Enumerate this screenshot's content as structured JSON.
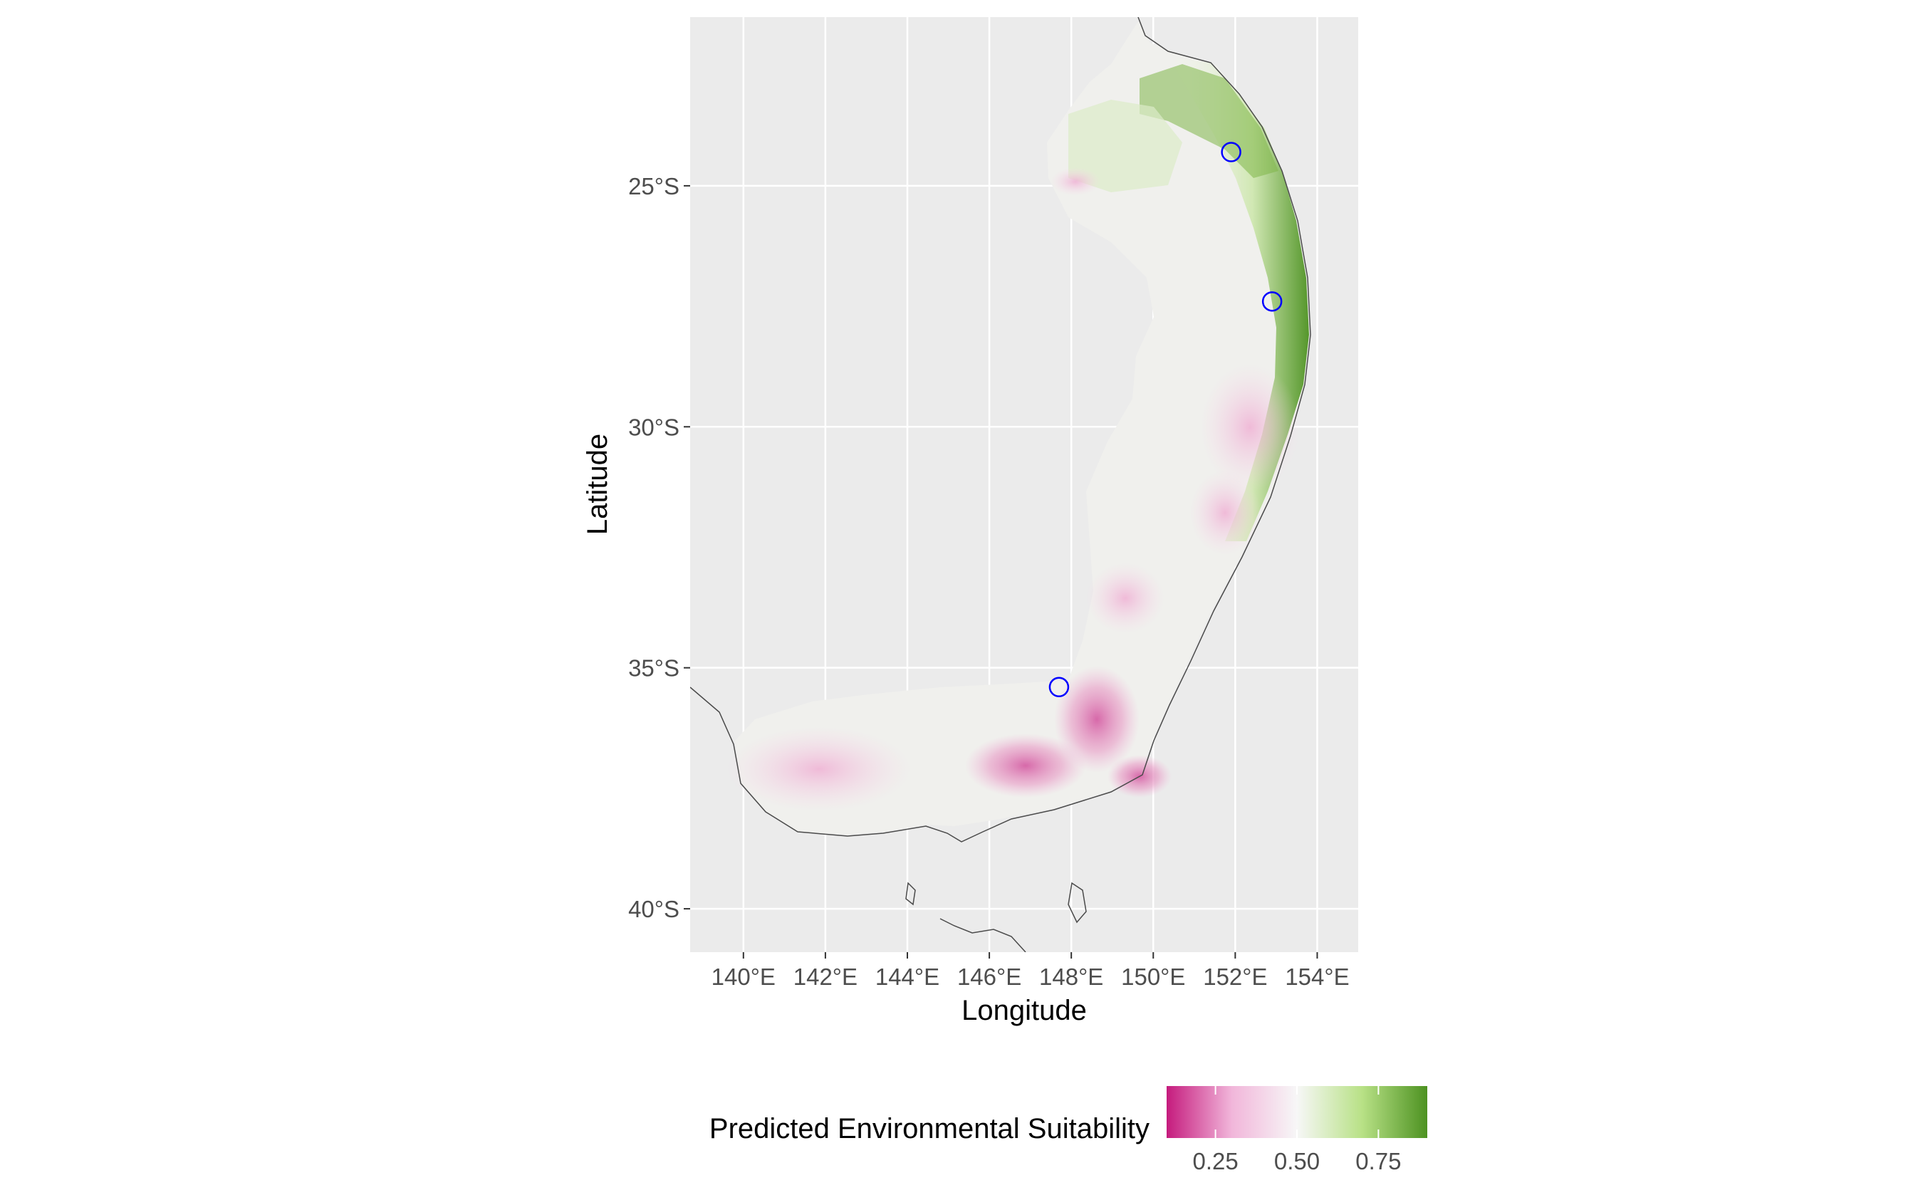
{
  "chart_data": {
    "type": "heatmap",
    "subtype": "raster map",
    "title": "",
    "xlabel": "Longitude",
    "ylabel": "Latitude",
    "xlim": [
      138.7,
      155.0
    ],
    "ylim": [
      -40.9,
      -21.5
    ],
    "x_ticks": [
      {
        "value": 140,
        "label": "140°E"
      },
      {
        "value": 142,
        "label": "142°E"
      },
      {
        "value": 144,
        "label": "144°E"
      },
      {
        "value": 146,
        "label": "146°E"
      },
      {
        "value": 148,
        "label": "148°E"
      },
      {
        "value": 150,
        "label": "150°E"
      },
      {
        "value": 152,
        "label": "152°E"
      },
      {
        "value": 154,
        "label": "154°E"
      }
    ],
    "y_ticks": [
      {
        "value": -25,
        "label": "25°S"
      },
      {
        "value": -30,
        "label": "30°S"
      },
      {
        "value": -35,
        "label": "35°S"
      },
      {
        "value": -40,
        "label": "40°S"
      }
    ],
    "grid": true,
    "panel_background": "#ebebeb",
    "occurrence_points": [
      {
        "lon": 151.9,
        "lat": -24.3
      },
      {
        "lon": 152.9,
        "lat": -27.4
      },
      {
        "lon": 147.7,
        "lat": -35.4
      }
    ],
    "occurrence_color": "#0000ff",
    "legend": {
      "title": "Predicted Environmental Suitability",
      "position": "bottom",
      "range": [
        0.1,
        0.9
      ],
      "ticks": [
        {
          "value": 0.25,
          "label": "0.25"
        },
        {
          "value": 0.5,
          "label": "0.50"
        },
        {
          "value": 0.75,
          "label": "0.75"
        }
      ],
      "colors": [
        "#c51b7d",
        "#f1b6da",
        "#f7f7f7",
        "#b8e186",
        "#4d9221"
      ]
    }
  }
}
